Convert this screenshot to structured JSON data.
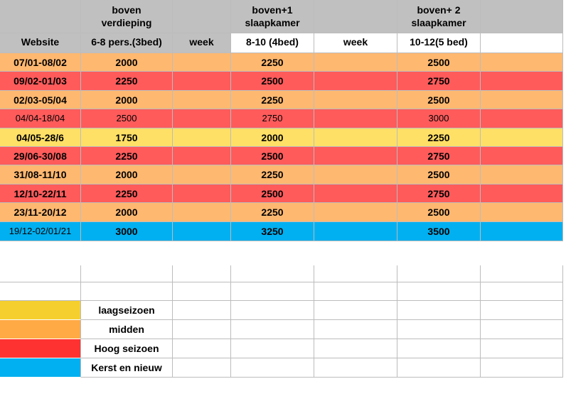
{
  "colors": {
    "laag": "#ffe066",
    "midden": "#ffb870",
    "hoog": "#ff5b5b",
    "kerst": "#00b0f0",
    "legend_yellow": "#f5cf2e",
    "legend_orange": "#ffaa44",
    "legend_red": "#ff3232",
    "legend_blue": "#00b0f0"
  },
  "header": {
    "boven_line1": "boven",
    "boven_line2": "verdieping",
    "boven1_line1": "boven+1",
    "boven1_line2": "slaapkamer",
    "boven2_line1": "boven+ 2",
    "boven2_line2": "slaapkamer",
    "website": "Website",
    "col_a": "6-8 pers.(3bed)",
    "week_a": "week",
    "col_b": "8-10 (4bed)",
    "week_b": "week",
    "col_c": "10-12(5 bed)"
  },
  "rows": [
    {
      "period": "07/01-08/02",
      "a": "2000",
      "b": "2250",
      "c": "2500",
      "season": "midden"
    },
    {
      "period": "09/02-01/03",
      "a": "2250",
      "b": "2500",
      "c": "2750",
      "season": "hoog"
    },
    {
      "period": "02/03-05/04",
      "a": "2000",
      "b": "2250",
      "c": "2500",
      "season": "midden"
    },
    {
      "period": "04/04-18/04",
      "a": "2500",
      "b": "2750",
      "c": "3000",
      "season": "hoog"
    },
    {
      "period": "04/05-28/6",
      "a": "1750",
      "b": "2000",
      "c": "2250",
      "season": "laag"
    },
    {
      "period": "29/06-30/08",
      "a": "2250",
      "b": "2500",
      "c": "2750",
      "season": "hoog"
    },
    {
      "period": "31/08-11/10",
      "a": "2000",
      "b": "2250",
      "c": "2500",
      "season": "midden"
    },
    {
      "period": "12/10-22/11",
      "a": "2250",
      "b": "2500",
      "c": "2750",
      "season": "hoog"
    },
    {
      "period": "23/11-20/12",
      "a": "2000",
      "b": "2250",
      "c": "2500",
      "season": "midden"
    },
    {
      "period": "19/12-02/01/21",
      "a": "3000",
      "b": "3250",
      "c": "3500",
      "season": "kerst"
    }
  ],
  "legend": {
    "laag": "laagseizoen",
    "midden": "midden",
    "hoog": "Hoog seizoen",
    "kerst": "Kerst en nieuw"
  }
}
